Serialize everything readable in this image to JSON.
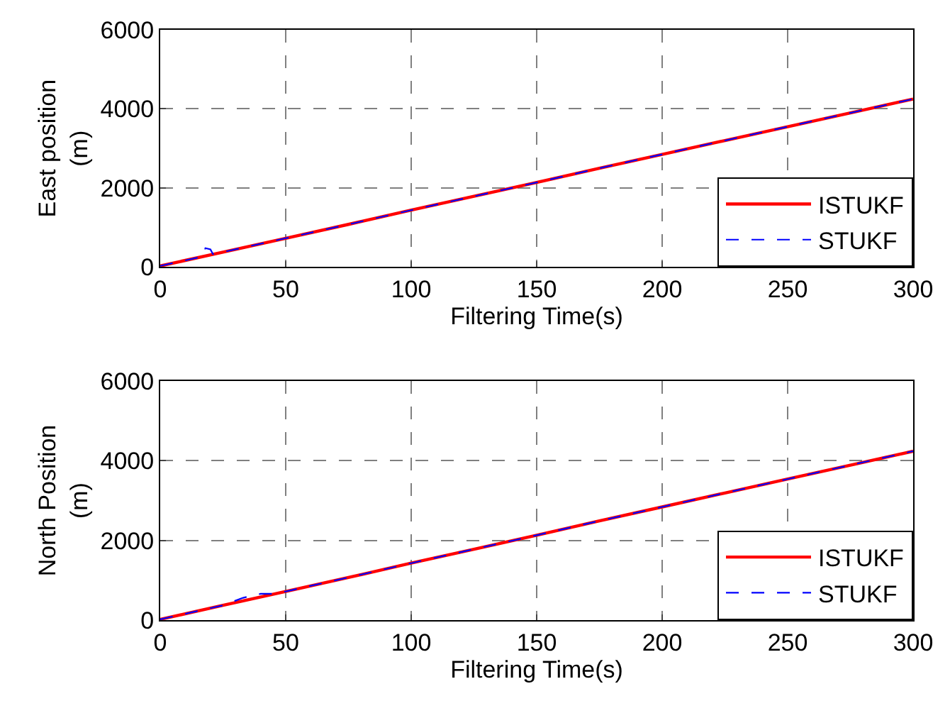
{
  "chart_data": [
    {
      "type": "line",
      "xlabel": "Filtering Time(s)",
      "ylabel": "East position (m)",
      "xlim": [
        0,
        300
      ],
      "ylim": [
        0,
        6000
      ],
      "xticks": [
        0,
        50,
        100,
        150,
        200,
        250,
        300
      ],
      "yticks": [
        0,
        2000,
        4000,
        6000
      ],
      "grid": true,
      "legend": "bottom right",
      "marker": "none",
      "series": [
        {
          "name": "ISTUKF",
          "color": "#ff0000",
          "line_style": "solid",
          "x": [
            0,
            25,
            50,
            75,
            100,
            125,
            150,
            175,
            200,
            225,
            250,
            275,
            300
          ],
          "values": [
            30,
            380,
            730,
            1080,
            1440,
            1790,
            2140,
            2500,
            2850,
            3200,
            3550,
            3900,
            4250
          ]
        },
        {
          "name": "STUKF",
          "color": "#0000ff",
          "line_style": "dashed",
          "x": [
            0,
            10,
            17,
            18,
            20,
            21,
            25,
            50,
            75,
            100,
            125,
            150,
            175,
            200,
            225,
            250,
            275,
            300
          ],
          "values": [
            30,
            170,
            270,
            480,
            450,
            330,
            380,
            730,
            1080,
            1440,
            1790,
            2140,
            2500,
            2850,
            3200,
            3550,
            3900,
            4250
          ]
        }
      ]
    },
    {
      "type": "line",
      "xlabel": "Filtering Time(s)",
      "ylabel": "North Position (m)",
      "xlim": [
        0,
        300
      ],
      "ylim": [
        0,
        6000
      ],
      "xticks": [
        0,
        50,
        100,
        150,
        200,
        250,
        300
      ],
      "yticks": [
        0,
        2000,
        4000,
        6000
      ],
      "grid": true,
      "legend": "bottom right",
      "marker": "none",
      "series": [
        {
          "name": "ISTUKF",
          "color": "#ff0000",
          "line_style": "solid",
          "x": [
            0,
            25,
            50,
            75,
            100,
            125,
            150,
            175,
            200,
            225,
            250,
            275,
            300
          ],
          "values": [
            20,
            370,
            720,
            1070,
            1430,
            1780,
            2130,
            2490,
            2840,
            3190,
            3540,
            3890,
            4240
          ]
        },
        {
          "name": "STUKF",
          "color": "#0000ff",
          "line_style": "dashed",
          "x": [
            0,
            25,
            33,
            40,
            45,
            50,
            75,
            100,
            125,
            150,
            175,
            200,
            225,
            250,
            275,
            300
          ],
          "values": [
            20,
            370,
            560,
            660,
            660,
            720,
            1070,
            1430,
            1780,
            2130,
            2490,
            2840,
            3190,
            3540,
            3890,
            4240
          ]
        }
      ]
    }
  ]
}
